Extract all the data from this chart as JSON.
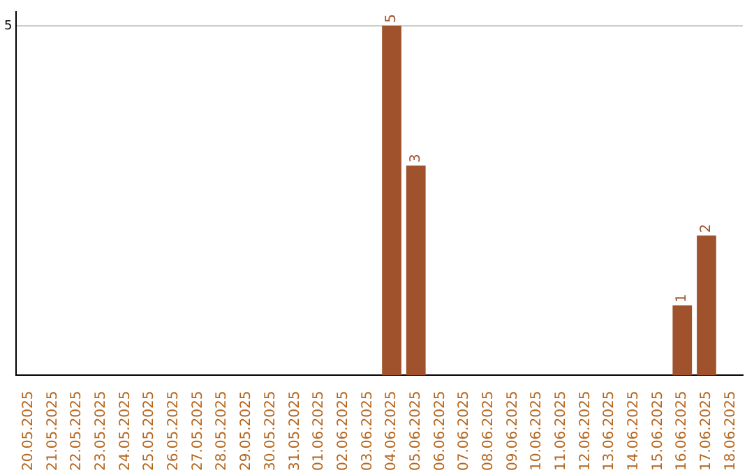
{
  "chart_data": {
    "type": "bar",
    "categories": [
      "20.05.2025",
      "21.05.2025",
      "22.05.2025",
      "23.05.2025",
      "24.05.2025",
      "25.05.2025",
      "26.05.2025",
      "27.05.2025",
      "28.05.2025",
      "29.05.2025",
      "30.05.2025",
      "31.05.2025",
      "01.06.2025",
      "02.06.2025",
      "03.06.2025",
      "04.06.2025",
      "05.06.2025",
      "06.06.2025",
      "07.06.2025",
      "08.06.2025",
      "09.06.2025",
      "10.06.2025",
      "11.06.2025",
      "12.06.2025",
      "13.06.2025",
      "14.06.2025",
      "15.06.2025",
      "16.06.2025",
      "17.06.2025",
      "18.06.2025"
    ],
    "values": [
      null,
      null,
      null,
      null,
      null,
      null,
      null,
      null,
      null,
      null,
      null,
      null,
      null,
      null,
      null,
      5,
      3,
      null,
      null,
      null,
      null,
      null,
      null,
      null,
      null,
      null,
      null,
      1,
      2,
      null
    ],
    "color": "#a0522d",
    "ylim": [
      0,
      5.2
    ],
    "yticks": [
      5
    ],
    "grid": "y",
    "legend": false,
    "data_labels": true
  }
}
